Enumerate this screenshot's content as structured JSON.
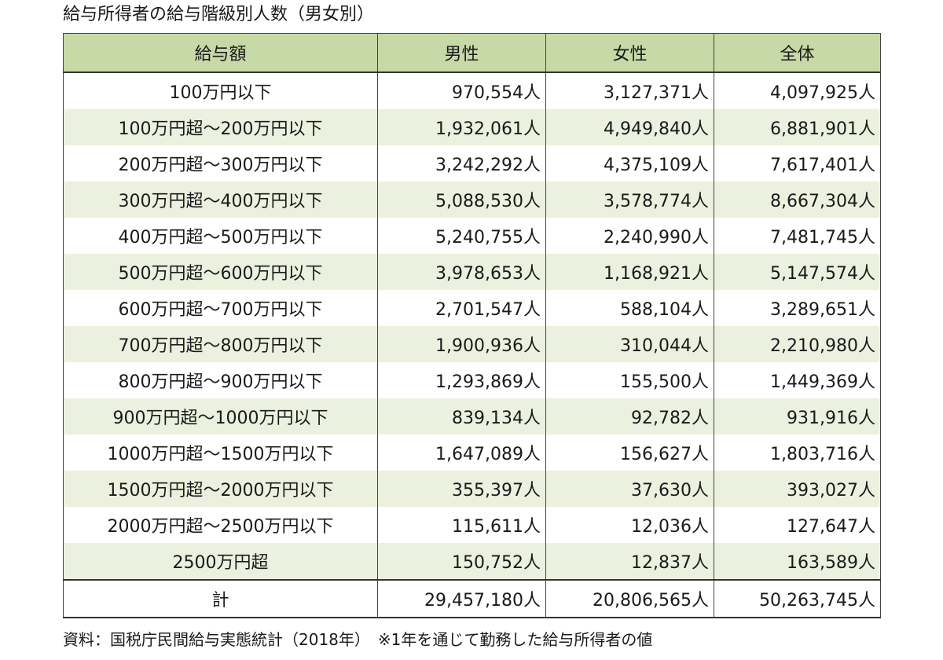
{
  "title": "給与所得者の給与階級別人数（男女別）",
  "table": {
    "headers": [
      "給与額",
      "男性",
      "女性",
      "全体"
    ],
    "rows": [
      [
        "100万円以下",
        "970,554人",
        "3,127,371人",
        "4,097,925人"
      ],
      [
        "100万円超～200万円以下",
        "1,932,061人",
        "4,949,840人",
        "6,881,901人"
      ],
      [
        "200万円超～300万円以下",
        "3,242,292人",
        "4,375,109人",
        "7,617,401人"
      ],
      [
        "300万円超～400万円以下",
        "5,088,530人",
        "3,578,774人",
        "8,667,304人"
      ],
      [
        "400万円超～500万円以下",
        "5,240,755人",
        "2,240,990人",
        "7,481,745人"
      ],
      [
        "500万円超～600万円以下",
        "3,978,653人",
        "1,168,921人",
        "5,147,574人"
      ],
      [
        "600万円超～700万円以下",
        "2,701,547人",
        "588,104人",
        "3,289,651人"
      ],
      [
        "700万円超～800万円以下",
        "1,900,936人",
        "310,044人",
        "2,210,980人"
      ],
      [
        "800万円超～900万円以下",
        "1,293,869人",
        "155,500人",
        "1,449,369人"
      ],
      [
        "900万円超～1000万円以下",
        "839,134人",
        "92,782人",
        "931,916人"
      ],
      [
        "1000万円超～1500万円以下",
        "1,647,089人",
        "156,627人",
        "1,803,716人"
      ],
      [
        "1500万円超～2000万円以下",
        "355,397人",
        "37,630人",
        "393,027人"
      ],
      [
        "2000万円超～2500万円以下",
        "115,611人",
        "12,036人",
        "127,647人"
      ],
      [
        "2500万円超",
        "150,752人",
        "12,837人",
        "163,589人"
      ]
    ],
    "total": [
      "計",
      "29,457,180人",
      "20,806,565人",
      "50,263,745人"
    ]
  },
  "footnote": "資料：国税庁民間給与実態統計（2018年）　※1年を通じて勤務した給与所得者の値",
  "colors": {
    "header_bg": "#c6d9a6",
    "stripe_bg": "#ebf1de",
    "border": "#444444"
  }
}
